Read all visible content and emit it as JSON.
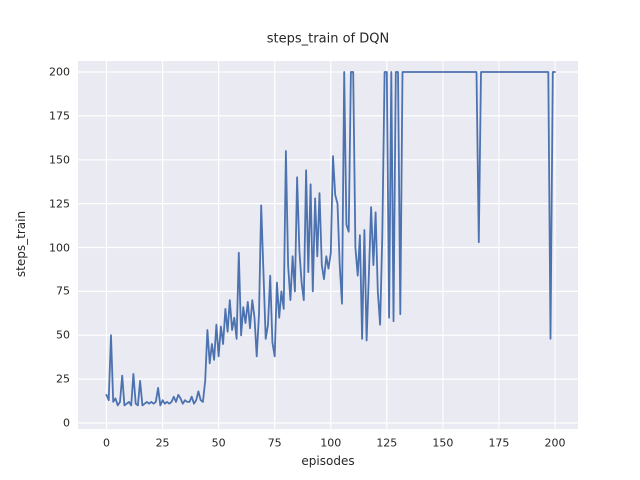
{
  "chart_data": {
    "type": "line",
    "title": "steps_train of DQN",
    "xlabel": "episodes",
    "ylabel": "steps_train",
    "x_start": 0,
    "x_step": 1,
    "xticks": [
      0,
      25,
      50,
      75,
      100,
      125,
      150,
      175,
      200
    ],
    "yticks": [
      0,
      25,
      50,
      75,
      100,
      125,
      150,
      175,
      200
    ],
    "xlim": [
      -12,
      209
    ],
    "ylim": [
      -4,
      207
    ],
    "grid": true,
    "legend": "none",
    "style": {
      "fig_bg": "#ffffff",
      "axes_bg": "#eaeaf2",
      "grid_color": "#ffffff",
      "text_color": "#262626",
      "line_width": 1.8
    },
    "series": [
      {
        "name": "steps_train",
        "color": "#4c72b0",
        "values": [
          16,
          13,
          50,
          12,
          14,
          10,
          12,
          27,
          10,
          11,
          12,
          10,
          28,
          11,
          10,
          24,
          10,
          11,
          12,
          11,
          12,
          11,
          12,
          20,
          10,
          13,
          11,
          12,
          11,
          12,
          15,
          12,
          16,
          14,
          11,
          13,
          12,
          12,
          15,
          11,
          13,
          18,
          13,
          12,
          24,
          53,
          34,
          45,
          36,
          56,
          38,
          55,
          45,
          65,
          52,
          70,
          53,
          60,
          48,
          97,
          50,
          66,
          57,
          69,
          54,
          70,
          60,
          38,
          62,
          124,
          85,
          48,
          56,
          84,
          46,
          38,
          80,
          60,
          75,
          65,
          155,
          90,
          70,
          95,
          75,
          140,
          98,
          80,
          70,
          144,
          86,
          136,
          75,
          128,
          95,
          131,
          90,
          82,
          95,
          88,
          97,
          152,
          130,
          125,
          90,
          68,
          200,
          113,
          109,
          200,
          200,
          100,
          84,
          107,
          48,
          110,
          47,
          85,
          123,
          90,
          120,
          75,
          56,
          107,
          200,
          200,
          60,
          200,
          58,
          200,
          200,
          62,
          200,
          200,
          200,
          200,
          200,
          200,
          200,
          200,
          200,
          200,
          200,
          200,
          200,
          200,
          200,
          200,
          200,
          200,
          200,
          200,
          200,
          200,
          200,
          200,
          200,
          200,
          200,
          200,
          200,
          200,
          200,
          200,
          200,
          200,
          103,
          200,
          200,
          200,
          200,
          200,
          200,
          200,
          200,
          200,
          200,
          200,
          200,
          200,
          200,
          200,
          200,
          200,
          200,
          200,
          200,
          200,
          200,
          200,
          200,
          200,
          200,
          200,
          200,
          200,
          200,
          200,
          48,
          200,
          200
        ]
      }
    ]
  }
}
